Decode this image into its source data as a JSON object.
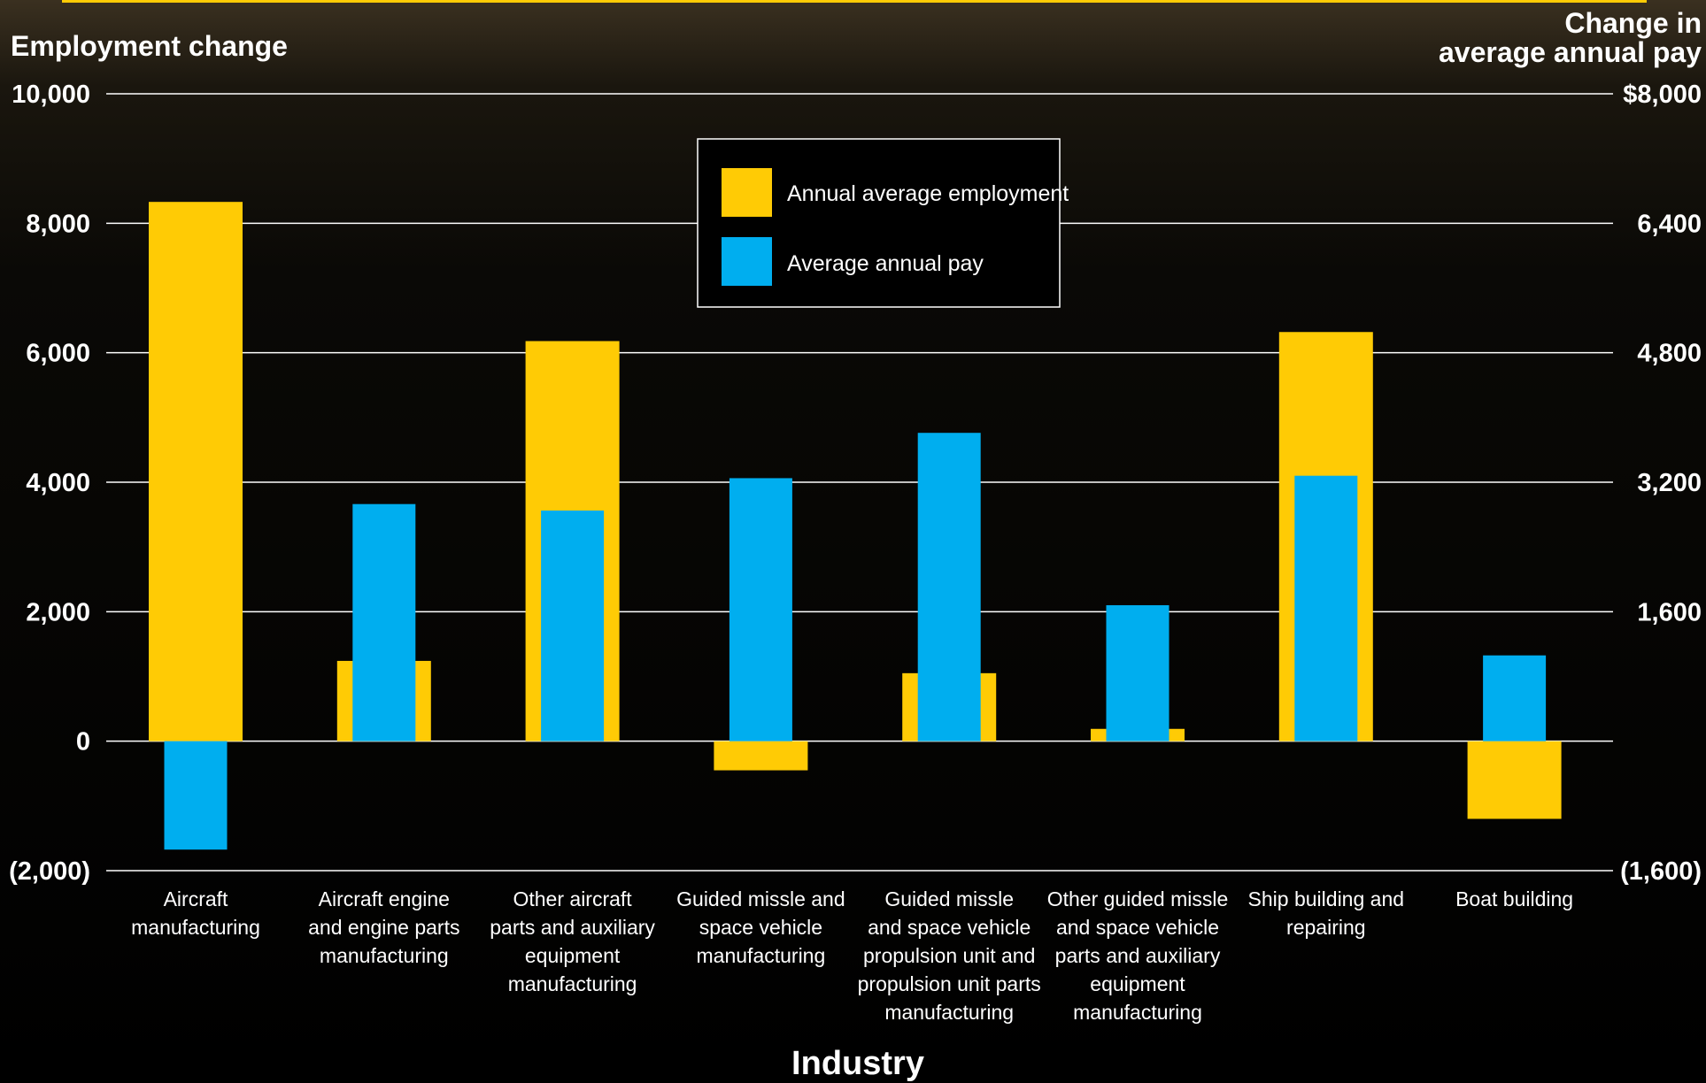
{
  "chart_data": {
    "type": "bar",
    "xlabel": "Industry",
    "ylabel_left": "Employment change",
    "ylabel_right": [
      "Change in",
      "average annual pay"
    ],
    "ylim_left": [
      -2000,
      10000
    ],
    "ylim_right": [
      -1600,
      8000
    ],
    "yticks_left": [
      "(2,000)",
      "0",
      "2,000",
      "4,000",
      "6,000",
      "8,000",
      "10,000"
    ],
    "yticks_right": [
      "(1,600)",
      "",
      "1,600",
      "3,200",
      "4,800",
      "6,400",
      "$8,000"
    ],
    "categories": [
      [
        "Aircraft",
        "manufacturing"
      ],
      [
        "Aircraft engine",
        "and engine parts",
        "manufacturing"
      ],
      [
        "Other aircraft",
        "parts and auxiliary",
        "equipment",
        "manufacturing"
      ],
      [
        "Guided missle and",
        "space vehicle",
        "manufacturing"
      ],
      [
        "Guided missle",
        "and space vehicle",
        "propulsion unit and",
        "propulsion unit parts",
        "manufacturing"
      ],
      [
        "Other guided missle",
        "and space vehicle",
        "parts and auxiliary",
        "equipment",
        "manufacturing"
      ],
      [
        "Ship building and",
        "repairing"
      ],
      [
        "Boat building"
      ]
    ],
    "series": [
      {
        "name": "Annual average employment",
        "axis": "left",
        "color": "#ffcb05",
        "values": [
          8330,
          1240,
          6180,
          -450,
          1050,
          190,
          6320,
          -1200
        ]
      },
      {
        "name": "Average annual pay",
        "axis": "right",
        "color": "#00aeef",
        "values": [
          -1340,
          2930,
          2850,
          3250,
          3810,
          1680,
          3280,
          1060
        ]
      }
    ],
    "grid": true,
    "legend_position": "top-center"
  }
}
